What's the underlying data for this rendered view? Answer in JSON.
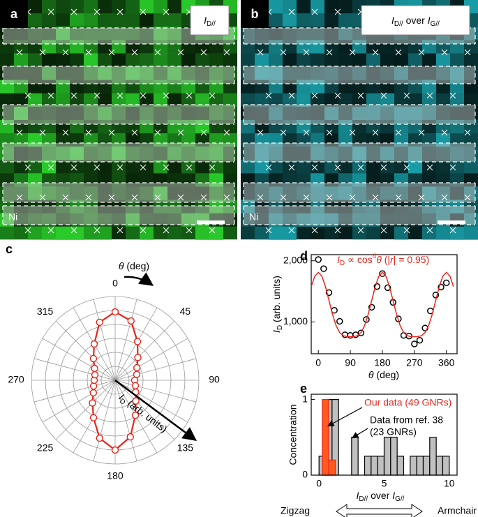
{
  "figure": {
    "panels": [
      {
        "label": "a",
        "title": [
          {
            "text": "I",
            "italic": true
          },
          {
            "text": "D//",
            "sub": true
          }
        ],
        "material": "Ni",
        "color": "#2bd62b"
      },
      {
        "label": "b",
        "title": [
          {
            "text": "I",
            "italic": true
          },
          {
            "text": "D//",
            "sub": true
          },
          {
            "text": " over "
          },
          {
            "text": "I",
            "italic": true
          },
          {
            "text": "G//",
            "sub": true
          }
        ],
        "material": "Ni",
        "color": "#1aa9b3"
      }
    ]
  },
  "chart_data": [
    {
      "label": "c",
      "type": "polar",
      "theta": [
        0,
        15,
        30,
        45,
        60,
        75,
        90,
        105,
        120,
        135,
        150,
        165,
        180,
        195,
        210,
        225,
        240,
        255,
        270,
        285,
        300,
        315,
        330,
        345
      ],
      "values": [
        4.9,
        4.4,
        3.2,
        2.3,
        1.8,
        1.6,
        1.4,
        1.5,
        1.7,
        2.1,
        2.9,
        4.2,
        5.0,
        4.3,
        3.1,
        2.3,
        1.8,
        1.6,
        1.5,
        1.5,
        1.7,
        2.2,
        3.0,
        4.3
      ],
      "rlim": [
        0,
        6
      ],
      "rgrid": [
        1,
        2,
        3,
        4,
        5,
        6
      ],
      "spoke_step": 15,
      "thetaticks": [
        0,
        45,
        90,
        135,
        180,
        225,
        270,
        315
      ],
      "color": "#e8251b",
      "theta_label": [
        {
          "text": "θ",
          "italic": true
        },
        {
          "text": " (deg)"
        }
      ],
      "r_label": [
        {
          "text": "I",
          "italic": true
        },
        {
          "text": "D",
          "sub": true
        },
        {
          "text": " (arb. units)"
        }
      ]
    },
    {
      "label": "d",
      "type": "scatter",
      "series": [
        {
          "kind": "points",
          "color": "#000000",
          "x": [
            0,
            15,
            30,
            45,
            60,
            75,
            90,
            105,
            120,
            135,
            150,
            165,
            180,
            195,
            210,
            225,
            240,
            255,
            270,
            285,
            300,
            315,
            330,
            345,
            360
          ],
          "values": [
            2020,
            1870,
            1480,
            1190,
            1010,
            790,
            780,
            790,
            820,
            1040,
            1240,
            1580,
            1790,
            1560,
            1320,
            1050,
            780,
            770,
            640,
            700,
            900,
            1180,
            1440,
            1570,
            1640
          ]
        },
        {
          "kind": "line",
          "color": "#e8251b",
          "x": [
            -20,
            -10,
            0,
            10,
            20,
            30,
            40,
            50,
            60,
            70,
            80,
            90,
            100,
            110,
            120,
            130,
            140,
            150,
            160,
            170,
            180,
            190,
            200,
            210,
            220,
            230,
            240,
            250,
            260,
            270,
            280,
            290,
            300,
            310,
            320,
            330,
            340,
            350,
            360,
            370,
            380
          ],
          "values": [
            1579,
            1748,
            1810,
            1748,
            1579,
            1351,
            1122,
            939,
            826,
            774,
            761,
            760,
            761,
            774,
            826,
            939,
            1122,
            1351,
            1579,
            1748,
            1810,
            1748,
            1579,
            1351,
            1122,
            939,
            826,
            774,
            761,
            760,
            761,
            774,
            826,
            939,
            1122,
            1351,
            1579,
            1748,
            1810,
            1748,
            1579
          ]
        }
      ],
      "xlim": [
        -20,
        390
      ],
      "xticks": [
        0,
        90,
        180,
        270,
        360
      ],
      "ylim": [
        480,
        2100
      ],
      "yticks": [
        {
          "value": 1000,
          "label": "1,000"
        },
        {
          "value": 2000,
          "label": "2,000"
        }
      ],
      "xlabel": [
        {
          "text": "θ",
          "italic": true
        },
        {
          "text": " (deg)"
        }
      ],
      "ylabel": [
        {
          "text": "I",
          "italic": true
        },
        {
          "text": "D",
          "sub": true
        },
        {
          "text": " (arb. units)"
        }
      ],
      "annotation": [
        {
          "text": "I",
          "italic": true
        },
        {
          "text": "D",
          "sub": true
        },
        {
          "text": " ∝ cos"
        },
        {
          "text": "4",
          "sup": true
        },
        {
          "text": "θ",
          "italic": true
        },
        {
          "text": " (|"
        },
        {
          "text": "r",
          "italic": true
        },
        {
          "text": "| = 0.95)"
        }
      ],
      "annotation_color": "#e8251b"
    },
    {
      "label": "e",
      "type": "histogram",
      "series": [
        {
          "color": "#c0c0c0",
          "edge": "#000000",
          "bins": [
            0,
            0.5,
            1,
            1.5,
            2,
            2.5,
            3,
            3.5,
            4,
            4.5,
            5,
            5.5,
            6,
            6.5,
            7,
            7.5,
            8,
            8.5,
            9,
            9.5,
            10
          ],
          "values": [
            0.25,
            1,
            1,
            0,
            0,
            0.5,
            0,
            0.25,
            0.25,
            0.25,
            0.5,
            0.5,
            0.25,
            0,
            0.25,
            0.25,
            0.25,
            0.5,
            0.25,
            0.25
          ]
        },
        {
          "color": "#ff5a1f",
          "edge": "#e8251b",
          "bins": [
            0.25,
            0.75,
            1.25
          ],
          "values": [
            1,
            0.2
          ]
        }
      ],
      "xlim": [
        -0.6,
        10.6
      ],
      "xticks": [
        0,
        5,
        10
      ],
      "ylim": [
        0,
        1.07
      ],
      "yticks": [
        0,
        1
      ],
      "ylabel": "Concentration",
      "xlabel": [
        {
          "text": "I",
          "italic": true
        },
        {
          "text": "D//",
          "sub": true
        },
        {
          "text": " over "
        },
        {
          "text": "I",
          "italic": true
        },
        {
          "text": "G//",
          "sub": true
        }
      ],
      "annotations": [
        {
          "lines": [
            "Our data (49 GNRs)"
          ],
          "color": "#e8251b"
        },
        {
          "lines": [
            "Data from ref. 38",
            "(23 GNRs)"
          ],
          "color": "#000000"
        }
      ],
      "scale": {
        "left": "Zigzag",
        "right": "Armchair"
      }
    }
  ]
}
